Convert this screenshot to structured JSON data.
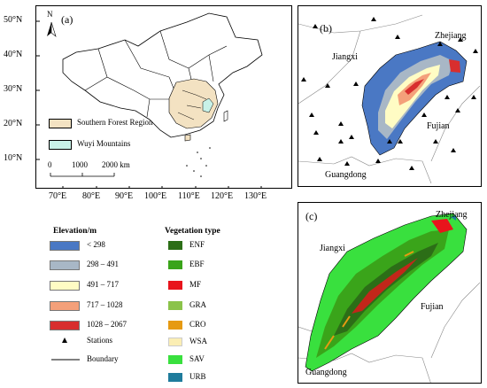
{
  "panel_a": {
    "tag": "(a)",
    "north": "N",
    "y_ticks": [
      "50°N",
      "40°N",
      "30°N",
      "20°N",
      "10°N"
    ],
    "x_ticks": [
      "70°E",
      "80°E",
      "90°E",
      "100°E",
      "110°E",
      "120°E",
      "130°E"
    ],
    "legend": [
      {
        "label": "Southern Forest Region",
        "color": "#f3e2c2"
      },
      {
        "label": "Wuyi Mountains",
        "color": "#c8f2e8"
      }
    ],
    "scale": {
      "labels": [
        "0",
        "1000",
        "2000 km"
      ]
    }
  },
  "panel_b": {
    "tag": "(b)",
    "labels": {
      "jiangxi": "Jiangxi",
      "zhejiang": "Zhejiang",
      "fujian": "Fujian",
      "guangdong": "Guangdong"
    }
  },
  "panel_c": {
    "tag": "(c)",
    "labels": {
      "jiangxi": "Jiangxi",
      "zhejiang": "Zhejiang",
      "fujian": "Fujian",
      "guangdong": "Guangdong"
    }
  },
  "legend_elevation": {
    "title": "Elevation/m",
    "items": [
      {
        "label": "< 298",
        "color": "#4a78c4"
      },
      {
        "label": "298 – 491",
        "color": "#a8b7c6"
      },
      {
        "label": "491 – 717",
        "color": "#fffcc4"
      },
      {
        "label": "717 – 1028",
        "color": "#f4a07a"
      },
      {
        "label": "1028 – 2067",
        "color": "#d82e2e"
      }
    ],
    "stations": "Stations",
    "boundary": "Boundary"
  },
  "legend_vegetation": {
    "title": "Vegetation type",
    "items": [
      {
        "label": "ENF",
        "color": "#2c6e17"
      },
      {
        "label": "EBF",
        "color": "#3aa41a"
      },
      {
        "label": "MF",
        "color": "#e8141c"
      },
      {
        "label": "GRA",
        "color": "#8bc34a"
      },
      {
        "label": "CRO",
        "color": "#e69a12"
      },
      {
        "label": "WSA",
        "color": "#fbeeb4"
      },
      {
        "label": "SAV",
        "color": "#39e03e"
      },
      {
        "label": "URB",
        "color": "#1f7c9c"
      }
    ]
  }
}
